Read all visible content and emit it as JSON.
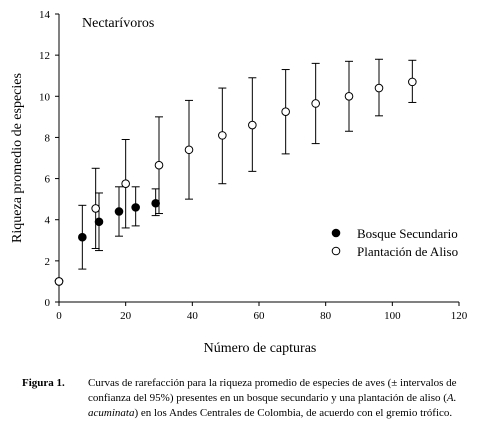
{
  "chart_data": {
    "type": "scatter",
    "title": "Nectarívoros",
    "xlabel": "Número de capturas",
    "ylabel": "Riqueza promedio de especies",
    "xlim": [
      0,
      120
    ],
    "ylim": [
      0,
      14
    ],
    "x_ticks": [
      0,
      20,
      40,
      60,
      80,
      100,
      120
    ],
    "y_ticks": [
      0,
      2,
      4,
      6,
      8,
      10,
      12,
      14
    ],
    "legend_position": "center-right",
    "grid": false,
    "series": [
      {
        "name": "Bosque Secundario",
        "marker": "filled-circle",
        "color": "#000000",
        "points": [
          {
            "x": 0,
            "y": 1.0,
            "lower": 1.0,
            "upper": 1.0
          },
          {
            "x": 7,
            "y": 3.15,
            "lower": 1.6,
            "upper": 4.7
          },
          {
            "x": 12,
            "y": 3.9,
            "lower": 2.5,
            "upper": 5.3
          },
          {
            "x": 18,
            "y": 4.4,
            "lower": 3.2,
            "upper": 5.6
          },
          {
            "x": 23,
            "y": 4.6,
            "lower": 3.7,
            "upper": 5.6
          },
          {
            "x": 29,
            "y": 4.8,
            "lower": 4.2,
            "upper": 5.5
          }
        ]
      },
      {
        "name": "Plantación de Aliso",
        "marker": "open-circle",
        "color": "#000000",
        "points": [
          {
            "x": 0,
            "y": 1.0,
            "lower": 1.0,
            "upper": 1.0
          },
          {
            "x": 11,
            "y": 4.55,
            "lower": 2.6,
            "upper": 6.5
          },
          {
            "x": 20,
            "y": 5.75,
            "lower": 3.6,
            "upper": 7.9
          },
          {
            "x": 30,
            "y": 6.65,
            "lower": 4.3,
            "upper": 9.0
          },
          {
            "x": 39,
            "y": 7.4,
            "lower": 5.0,
            "upper": 9.8
          },
          {
            "x": 49,
            "y": 8.1,
            "lower": 5.75,
            "upper": 10.4
          },
          {
            "x": 58,
            "y": 8.6,
            "lower": 6.35,
            "upper": 10.9
          },
          {
            "x": 68,
            "y": 9.25,
            "lower": 7.2,
            "upper": 11.3
          },
          {
            "x": 77,
            "y": 9.65,
            "lower": 7.7,
            "upper": 11.6
          },
          {
            "x": 87,
            "y": 10.0,
            "lower": 8.3,
            "upper": 11.7
          },
          {
            "x": 96,
            "y": 10.4,
            "lower": 9.05,
            "upper": 11.8
          },
          {
            "x": 106,
            "y": 10.7,
            "lower": 9.7,
            "upper": 11.75
          }
        ]
      }
    ]
  },
  "caption": {
    "label": "Figura 1.",
    "text_part1": "Curvas de rarefacción para la riqueza promedio de especies de aves (± intervalos de confianza del 95%) presentes en un bosque secundario y una plantación de aliso (",
    "text_italic": "A. acuminata",
    "text_part2": ") en los Andes Centrales de Colombia, de acuerdo con el gremio trófico."
  }
}
